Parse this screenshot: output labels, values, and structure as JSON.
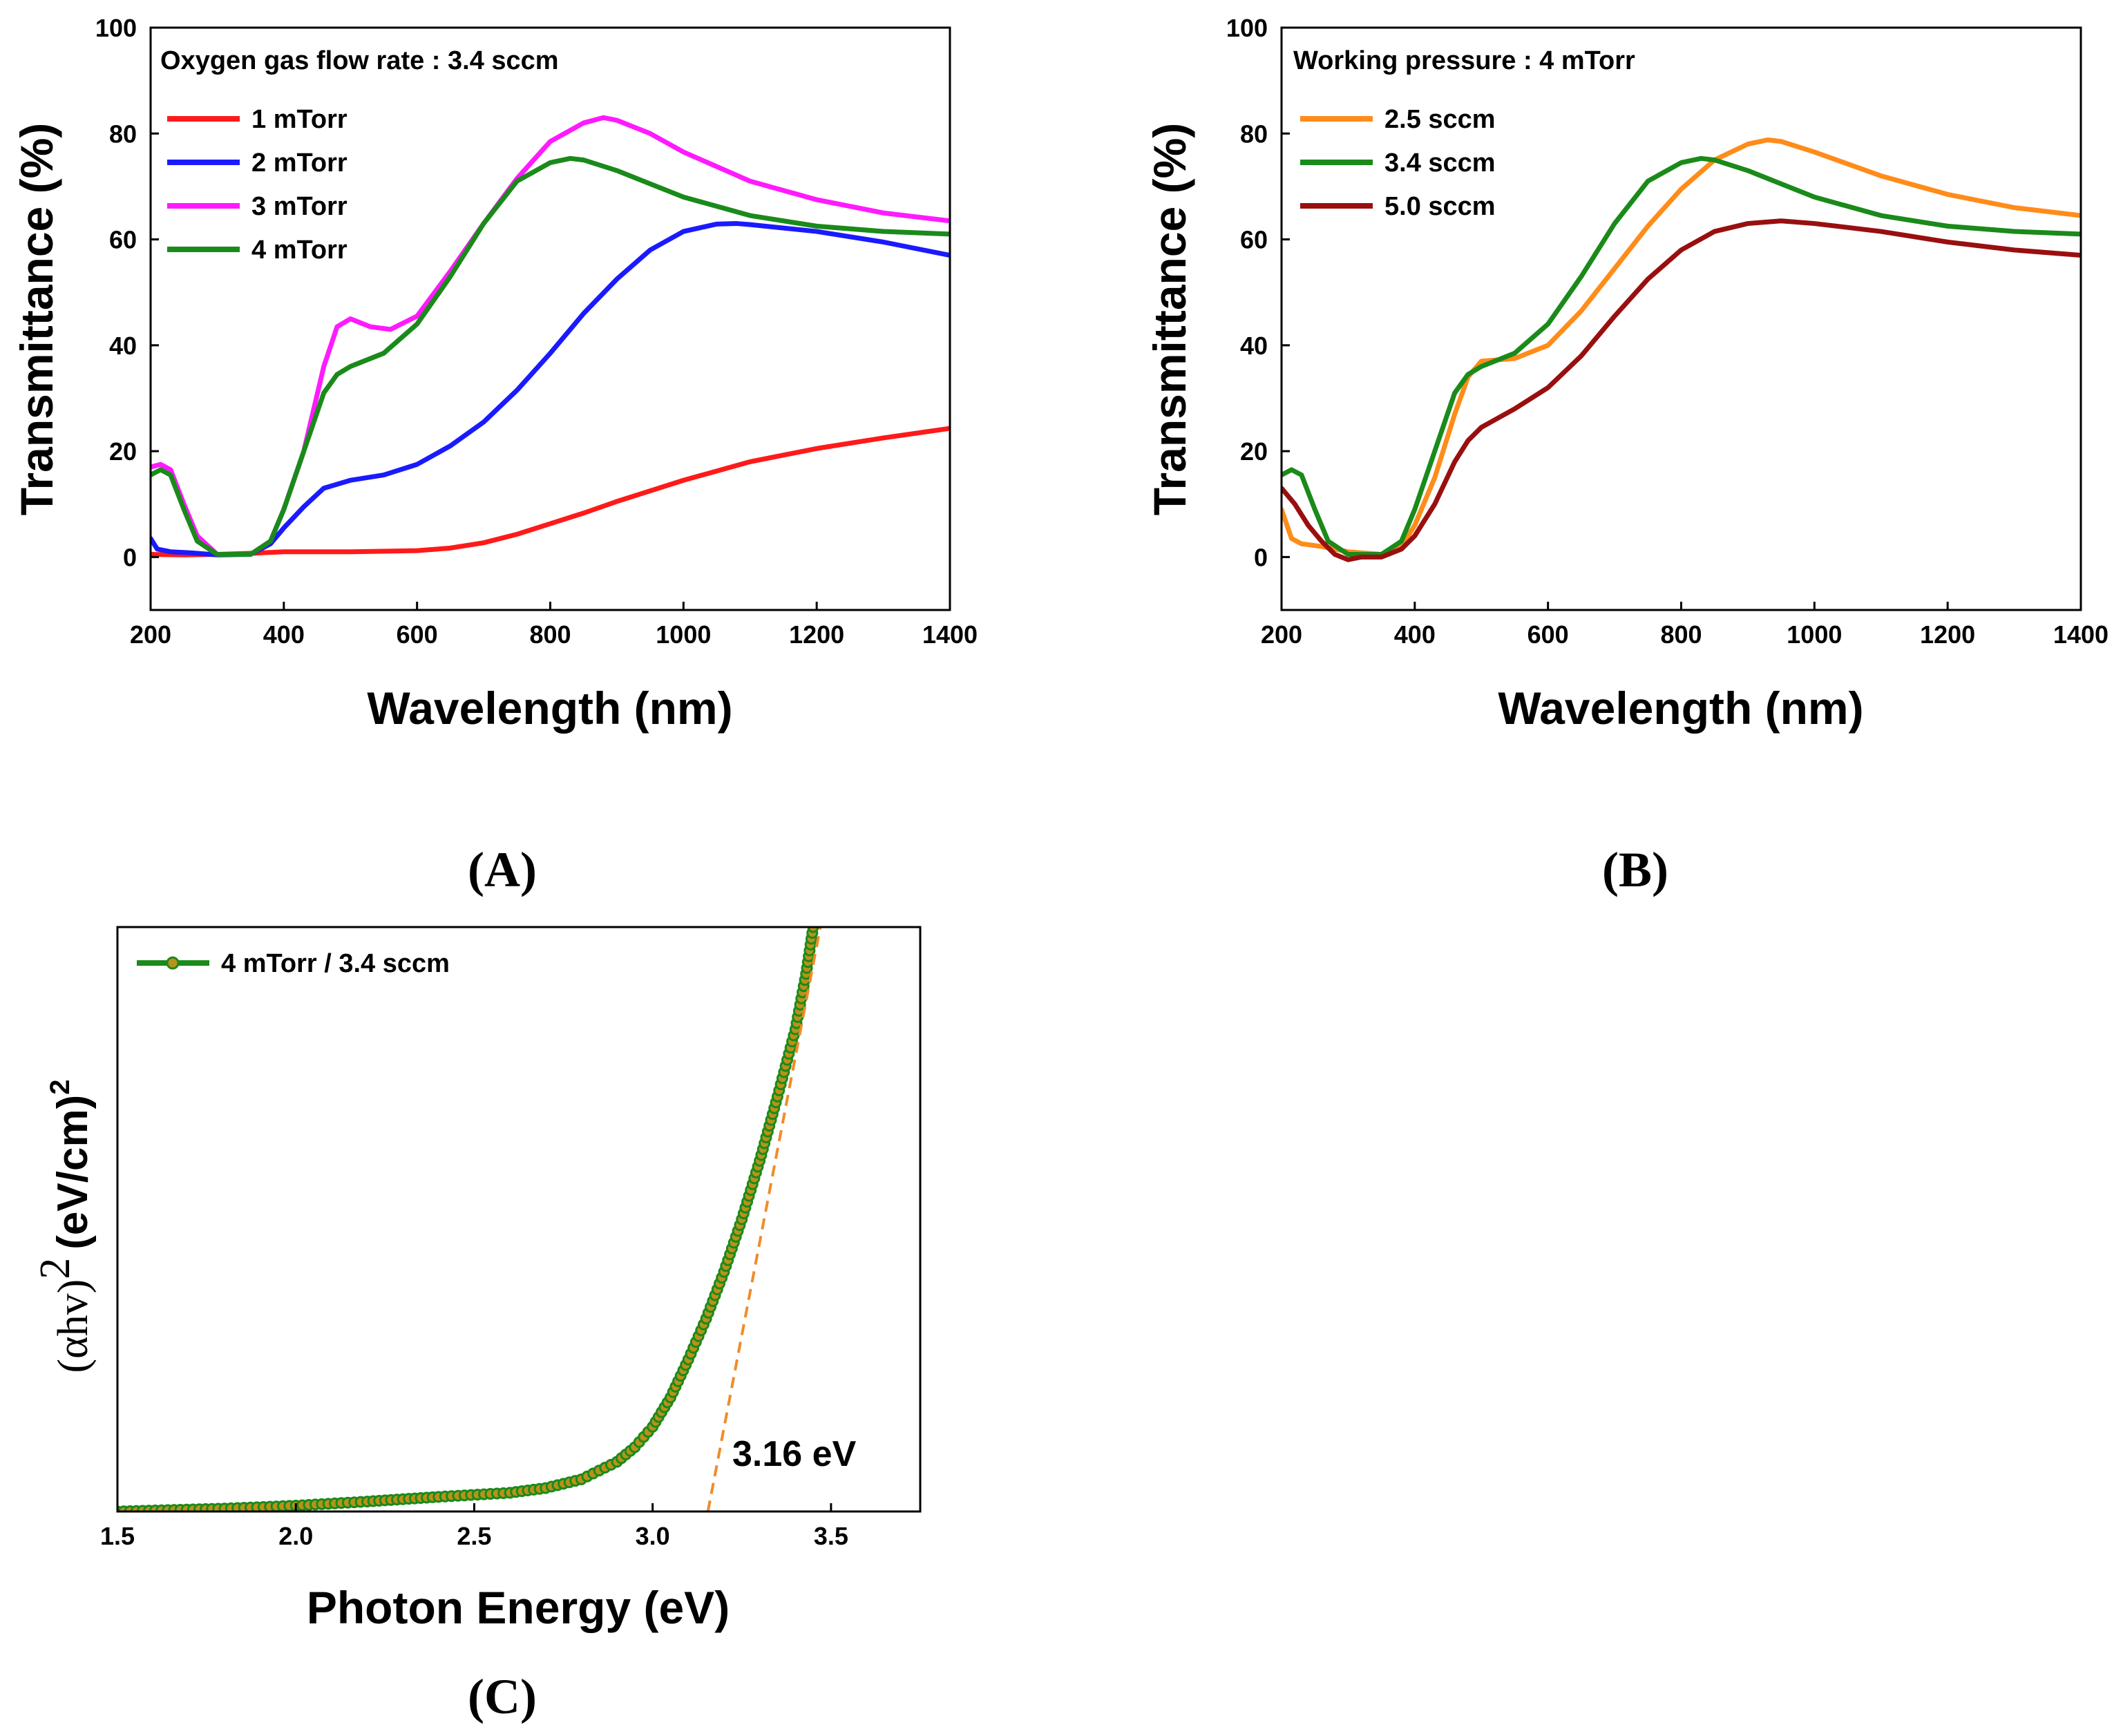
{
  "chart_data": [
    {
      "id": "A",
      "type": "line",
      "caption": "(A)",
      "annotation": "Oxygen gas flow rate : 3.4 sccm",
      "xlabel": "Wavelength (nm)",
      "ylabel": "Transmittance (%)",
      "xlim": [
        200,
        1400
      ],
      "ylim": [
        -10,
        100
      ],
      "xticks": [
        200,
        400,
        600,
        800,
        1000,
        1200,
        1400
      ],
      "yticks": [
        0,
        20,
        40,
        60,
        80,
        100
      ],
      "legend_position": "top-left",
      "series": [
        {
          "name": "1 mTorr",
          "color": "#ff1a1a",
          "x": [
            200,
            250,
            300,
            350,
            400,
            500,
            600,
            650,
            700,
            750,
            800,
            850,
            900,
            950,
            1000,
            1100,
            1200,
            1300,
            1400
          ],
          "y": [
            0.5,
            0.4,
            0.5,
            0.7,
            1.0,
            1.0,
            1.2,
            1.7,
            2.7,
            4.3,
            6.3,
            8.3,
            10.5,
            12.5,
            14.5,
            18.0,
            20.5,
            22.5,
            24.3
          ]
        },
        {
          "name": "2 mTorr",
          "color": "#1a1aff",
          "x": [
            200,
            210,
            230,
            260,
            300,
            350,
            380,
            400,
            430,
            460,
            500,
            550,
            600,
            650,
            700,
            750,
            800,
            850,
            900,
            950,
            1000,
            1050,
            1080,
            1100,
            1200,
            1300,
            1400
          ],
          "y": [
            3.5,
            1.5,
            1.0,
            0.8,
            0.4,
            0.5,
            2.5,
            5.5,
            9.5,
            13.0,
            14.5,
            15.5,
            17.5,
            21.0,
            25.5,
            31.5,
            38.5,
            46.0,
            52.5,
            58.0,
            61.5,
            62.9,
            63.0,
            62.8,
            61.5,
            59.5,
            57.0
          ]
        },
        {
          "name": "3 mTorr",
          "color": "#ff1aff",
          "x": [
            200,
            215,
            230,
            250,
            270,
            300,
            350,
            380,
            400,
            430,
            460,
            480,
            500,
            530,
            560,
            600,
            650,
            700,
            750,
            800,
            850,
            880,
            900,
            950,
            1000,
            1100,
            1200,
            1300,
            1400
          ],
          "y": [
            17.0,
            17.5,
            16.5,
            10.0,
            4.0,
            0.5,
            0.5,
            3.0,
            9.0,
            20.0,
            36.0,
            43.5,
            45.0,
            43.5,
            43.0,
            45.5,
            54.0,
            63.0,
            71.5,
            78.5,
            82.0,
            83.0,
            82.5,
            80.0,
            76.5,
            71.0,
            67.5,
            65.0,
            63.5
          ]
        },
        {
          "name": "4 mTorr",
          "color": "#1a8a1a",
          "x": [
            200,
            215,
            230,
            250,
            270,
            300,
            350,
            380,
            400,
            430,
            460,
            480,
            500,
            550,
            600,
            650,
            700,
            750,
            800,
            830,
            850,
            900,
            950,
            1000,
            1100,
            1200,
            1300,
            1400
          ],
          "y": [
            15.5,
            16.5,
            15.5,
            9.0,
            3.0,
            0.5,
            0.5,
            3.0,
            9.0,
            20.0,
            31.0,
            34.5,
            36.0,
            38.5,
            44.0,
            53.0,
            63.0,
            71.0,
            74.5,
            75.3,
            75.0,
            73.0,
            70.5,
            68.0,
            64.5,
            62.5,
            61.5,
            61.0
          ]
        }
      ]
    },
    {
      "id": "B",
      "type": "line",
      "caption": "(B)",
      "annotation": "Working pressure : 4 mTorr",
      "xlabel": "Wavelength (nm)",
      "ylabel": "Transmittance (%)",
      "xlim": [
        200,
        1400
      ],
      "ylim": [
        -10,
        100
      ],
      "xticks": [
        200,
        400,
        600,
        800,
        1000,
        1200,
        1400
      ],
      "yticks": [
        0,
        20,
        40,
        60,
        80,
        100
      ],
      "legend_position": "top-left",
      "series": [
        {
          "name": "2.5 sccm",
          "color": "#ff8c1a",
          "x": [
            200,
            215,
            230,
            260,
            300,
            350,
            380,
            400,
            430,
            460,
            480,
            500,
            550,
            600,
            650,
            700,
            750,
            800,
            850,
            900,
            930,
            950,
            1000,
            1100,
            1200,
            1300,
            1400
          ],
          "y": [
            9.0,
            3.5,
            2.5,
            2.0,
            1.0,
            0.5,
            2.0,
            6.0,
            15.0,
            27.0,
            34.0,
            37.0,
            37.5,
            40.0,
            46.5,
            54.5,
            62.5,
            69.5,
            75.0,
            78.0,
            78.8,
            78.5,
            76.5,
            72.0,
            68.5,
            66.0,
            64.5
          ]
        },
        {
          "name": "3.4 sccm",
          "color": "#1a8a1a",
          "x": [
            200,
            215,
            230,
            250,
            270,
            300,
            350,
            380,
            400,
            430,
            460,
            480,
            500,
            550,
            600,
            650,
            700,
            750,
            800,
            830,
            850,
            900,
            950,
            1000,
            1100,
            1200,
            1300,
            1400
          ],
          "y": [
            15.5,
            16.5,
            15.5,
            9.0,
            3.0,
            0.5,
            0.5,
            3.0,
            9.0,
            20.0,
            31.0,
            34.5,
            36.0,
            38.5,
            44.0,
            53.0,
            63.0,
            71.0,
            74.5,
            75.3,
            75.0,
            73.0,
            70.5,
            68.0,
            64.5,
            62.5,
            61.5,
            61.0
          ]
        },
        {
          "name": "5.0 sccm",
          "color": "#990f0f",
          "x": [
            200,
            220,
            240,
            260,
            280,
            300,
            320,
            350,
            380,
            400,
            430,
            460,
            480,
            500,
            550,
            600,
            650,
            700,
            750,
            800,
            850,
            900,
            950,
            1000,
            1100,
            1200,
            1300,
            1400
          ],
          "y": [
            13.0,
            10.0,
            6.0,
            3.0,
            0.5,
            -0.5,
            0.0,
            0.0,
            1.5,
            4.0,
            10.0,
            18.0,
            22.0,
            24.5,
            28.0,
            32.0,
            38.0,
            45.5,
            52.5,
            58.0,
            61.5,
            63.0,
            63.5,
            63.0,
            61.5,
            59.5,
            58.0,
            57.0
          ]
        }
      ]
    },
    {
      "id": "C",
      "type": "scatter",
      "caption": "(C)",
      "xlabel": "Photon Energy (eV)",
      "ylabel_main": "(αhv)",
      "ylabel_sup": "2",
      "ylabel_unit": "(eV/cm)",
      "ylabel_unit_sup": "2",
      "xlim": [
        1.5,
        3.75
      ],
      "ylim": [
        0,
        100
      ],
      "xticks": [
        1.5,
        2.0,
        2.5,
        3.0,
        3.5
      ],
      "xtick_labels": [
        "1.5",
        "2.0",
        "2.5",
        "3.0",
        "3.5"
      ],
      "legend_position": "top-left",
      "series": [
        {
          "name": "4 mTorr / 3.4 sccm",
          "color": "#1a8a1a",
          "x": [
            1.5,
            1.8,
            2.0,
            2.2,
            2.4,
            2.6,
            2.7,
            2.8,
            2.9,
            2.95,
            3.0,
            3.05,
            3.1,
            3.15,
            3.2,
            3.25,
            3.3,
            3.35,
            3.4,
            3.43,
            3.45
          ],
          "y": [
            0.0,
            0.5,
            1.0,
            1.7,
            2.5,
            3.2,
            4.0,
            5.5,
            8.5,
            11.0,
            14.5,
            19.5,
            26.0,
            33.0,
            41.0,
            50.0,
            60.0,
            71.0,
            82.5,
            92.0,
            100.0
          ]
        }
      ],
      "fit_line": {
        "color": "#f08c2a",
        "x": [
          3.155,
          3.47
        ],
        "y": [
          0,
          100
        ]
      },
      "annotation": "3.16 eV"
    }
  ]
}
